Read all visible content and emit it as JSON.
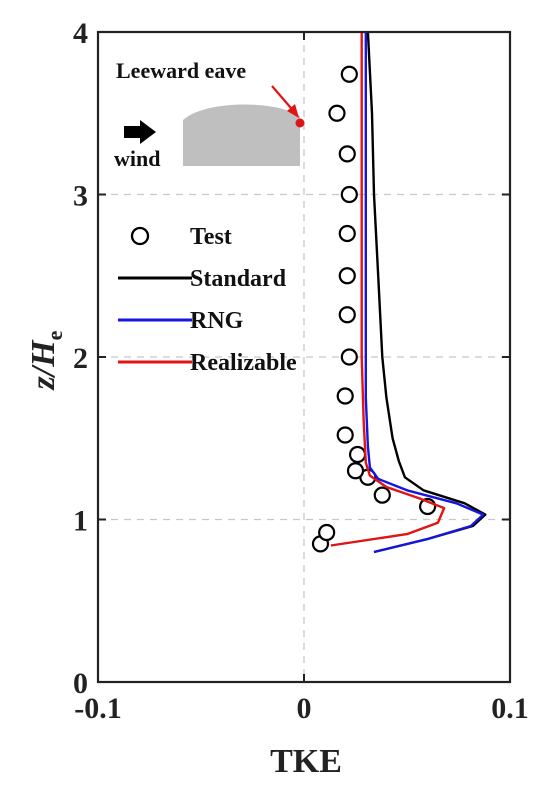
{
  "chart_data": {
    "type": "line",
    "xlabel": "TKE",
    "ylabel": "z/He",
    "ylabel_main": "z/H",
    "ylabel_sub": "e",
    "xlim": [
      -0.1,
      0.1
    ],
    "ylim": [
      0,
      4
    ],
    "xticks": [
      -0.1,
      0,
      0.1
    ],
    "xtick_labels": [
      "-0.1",
      "0",
      "0.1"
    ],
    "yticks": [
      0,
      1,
      2,
      3,
      4
    ],
    "ytick_labels": [
      "0",
      "1",
      "2",
      "3",
      "4"
    ],
    "grid": true,
    "legend_placement": "left",
    "series": [
      {
        "name": "Test",
        "kind": "scatter",
        "color": "#000000",
        "points": [
          [
            0.008,
            0.85
          ],
          [
            0.011,
            0.92
          ],
          [
            0.06,
            1.08
          ],
          [
            0.038,
            1.15
          ],
          [
            0.031,
            1.26
          ],
          [
            0.025,
            1.3
          ],
          [
            0.026,
            1.4
          ],
          [
            0.02,
            1.52
          ],
          [
            0.02,
            1.76
          ],
          [
            0.022,
            2.0
          ],
          [
            0.021,
            2.26
          ],
          [
            0.021,
            2.5
          ],
          [
            0.021,
            2.76
          ],
          [
            0.022,
            3.0
          ],
          [
            0.021,
            3.25
          ],
          [
            0.016,
            3.5
          ],
          [
            0.022,
            3.74
          ]
        ]
      },
      {
        "name": "Standard",
        "kind": "line",
        "color": "#000000",
        "points": [
          [
            0.034,
            0.8
          ],
          [
            0.06,
            0.88
          ],
          [
            0.082,
            0.96
          ],
          [
            0.088,
            1.03
          ],
          [
            0.078,
            1.1
          ],
          [
            0.058,
            1.18
          ],
          [
            0.049,
            1.26
          ],
          [
            0.046,
            1.36
          ],
          [
            0.043,
            1.5
          ],
          [
            0.04,
            1.75
          ],
          [
            0.038,
            2.0
          ],
          [
            0.036,
            2.5
          ],
          [
            0.034,
            3.0
          ],
          [
            0.033,
            3.5
          ],
          [
            0.031,
            4.0
          ]
        ]
      },
      {
        "name": "RNG",
        "kind": "line",
        "color": "#1515e0",
        "points": [
          [
            0.034,
            0.8
          ],
          [
            0.06,
            0.88
          ],
          [
            0.081,
            0.96
          ],
          [
            0.087,
            1.03
          ],
          [
            0.074,
            1.1
          ],
          [
            0.05,
            1.18
          ],
          [
            0.036,
            1.25
          ],
          [
            0.032,
            1.32
          ],
          [
            0.031,
            1.45
          ],
          [
            0.03,
            1.75
          ],
          [
            0.03,
            2.5
          ],
          [
            0.03,
            3.0
          ],
          [
            0.03,
            4.0
          ]
        ]
      },
      {
        "name": "Realizable",
        "kind": "line",
        "color": "#e01414",
        "points": [
          [
            0.013,
            0.84
          ],
          [
            0.05,
            0.91
          ],
          [
            0.065,
            0.98
          ],
          [
            0.068,
            1.07
          ],
          [
            0.056,
            1.13
          ],
          [
            0.04,
            1.2
          ],
          [
            0.032,
            1.27
          ],
          [
            0.03,
            1.35
          ],
          [
            0.029,
            1.6
          ],
          [
            0.028,
            2.0
          ],
          [
            0.028,
            2.5
          ],
          [
            0.028,
            3.0
          ],
          [
            0.028,
            3.5
          ],
          [
            0.028,
            4.0
          ]
        ]
      }
    ],
    "inset": {
      "annotation": "Leeward eave",
      "wind_label": "wind",
      "building_color": "#bfbfbf",
      "marker_color": "#e01414"
    }
  }
}
